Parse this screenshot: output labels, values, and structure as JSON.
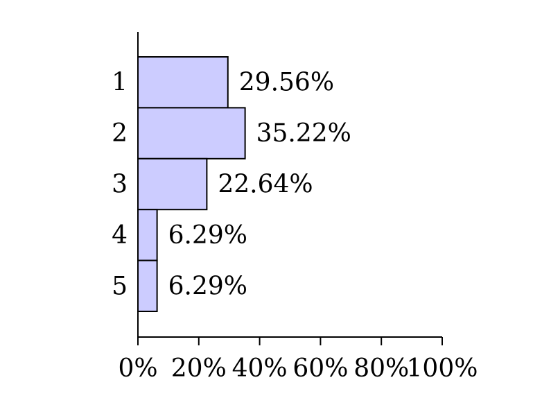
{
  "chart_data": {
    "type": "bar",
    "orientation": "horizontal",
    "categories": [
      "1",
      "2",
      "3",
      "4",
      "5"
    ],
    "values": [
      29.56,
      35.22,
      22.64,
      6.29,
      6.29
    ],
    "value_labels": [
      "29.56%",
      "35.22%",
      "22.64%",
      "6.29%",
      "6.29%"
    ],
    "title": "",
    "xlabel": "",
    "ylabel": "",
    "xlim": [
      0,
      100
    ],
    "x_ticks": [
      0,
      20,
      40,
      60,
      80,
      100
    ],
    "x_tick_labels": [
      "0%",
      "20%",
      "40%",
      "60%",
      "80%",
      "100%"
    ],
    "grid": false,
    "legend": "none",
    "colors": {
      "bar_fill": "#ccccff",
      "bar_stroke": "#000000",
      "axis": "#000000"
    }
  }
}
